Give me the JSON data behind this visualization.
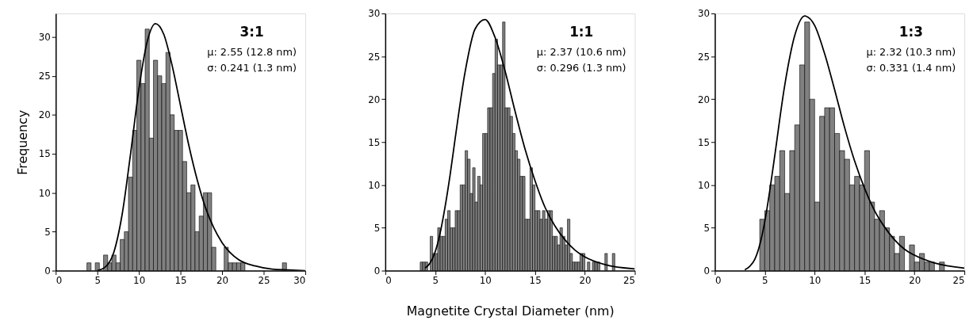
{
  "chart_data": [
    {
      "type": "histogram",
      "ylabel": "Frequency",
      "color": "#808080",
      "bins": [
        3.75,
        4.25,
        4.75,
        5.25,
        5.75,
        6.25,
        6.75,
        7.25,
        7.75,
        8.25,
        8.75,
        9.25,
        9.75,
        10.25,
        10.75,
        11.25,
        11.75,
        12.25,
        12.75,
        13.25,
        13.75,
        14.25,
        14.75,
        15.25,
        15.75,
        16.25,
        16.75,
        17.25,
        17.75,
        18.25,
        18.75,
        19.25,
        19.75,
        20.25,
        20.75,
        21.25,
        21.75,
        22.25,
        22.75,
        23.25,
        23.75,
        24.25,
        24.75,
        25.25,
        25.75,
        26.25,
        26.75,
        27.25,
        27.75
      ],
      "values": [
        1,
        0,
        1,
        0,
        2,
        1,
        2,
        1,
        4,
        5,
        12,
        18,
        27,
        24,
        31,
        17,
        27,
        25,
        24,
        28,
        20,
        18,
        18,
        14,
        10,
        11,
        5,
        7,
        10,
        10,
        3,
        0,
        0,
        3,
        1,
        1,
        1,
        1,
        0,
        0,
        0,
        0,
        0,
        0,
        0,
        0,
        0,
        1
      ],
      "series": [
        {
          "type": "line",
          "color": "#000000",
          "x": [
            5,
            6,
            7,
            8,
            9,
            10,
            11,
            12,
            13,
            14,
            15,
            16,
            17,
            18,
            19,
            20,
            22,
            24,
            26,
            28,
            30
          ],
          "values": [
            0.0,
            0.5,
            2.4,
            7.3,
            15.0,
            23.3,
            29.4,
            31.7,
            30.3,
            26.3,
            21.2,
            16.1,
            11.7,
            8.1,
            5.5,
            3.6,
            1.4,
            0.6,
            0.2,
            0.1,
            0.0
          ]
        }
      ],
      "xlim": [
        0,
        30
      ],
      "xticks": [
        0,
        5,
        10,
        15,
        20,
        25,
        30
      ],
      "ylim": [
        0,
        33
      ],
      "yticks": [
        0,
        5,
        10,
        15,
        20,
        25,
        30
      ],
      "annotations": [
        "3:1",
        "μ: 2.55 (12.8 nm)",
        "σ: 0.241 (1.3 nm)"
      ]
    },
    {
      "type": "histogram",
      "xlabel": "Magnetite Crystal Diameter (nm)",
      "color": "#808080",
      "bins": [
        3.5,
        3.75,
        4,
        4.25,
        4.5,
        4.75,
        5,
        5.25,
        5.5,
        5.75,
        6,
        6.25,
        6.5,
        6.75,
        7,
        7.25,
        7.5,
        7.75,
        8,
        8.25,
        8.5,
        8.75,
        9,
        9.25,
        9.5,
        9.75,
        10,
        10.25,
        10.5,
        10.75,
        11,
        11.25,
        11.5,
        11.75,
        12,
        12.25,
        12.5,
        12.75,
        13,
        13.25,
        13.5,
        13.75,
        14,
        14.25,
        14.5,
        14.75,
        15,
        15.25,
        15.5,
        15.75,
        16,
        16.25,
        16.5,
        16.75,
        17,
        17.25,
        17.5,
        17.75,
        18,
        18.25,
        18.5,
        18.75,
        19,
        19.25,
        19.5,
        19.75,
        20,
        20.25,
        20.5,
        20.75,
        21,
        21.25,
        21.5,
        21.75,
        22,
        22.25,
        22.5,
        22.75,
        23
      ],
      "values": [
        1,
        1,
        1,
        0,
        4,
        2,
        2,
        5,
        4,
        4,
        6,
        7,
        5,
        5,
        7,
        7,
        10,
        10,
        14,
        13,
        9,
        12,
        8,
        11,
        10,
        16,
        16,
        19,
        19,
        23,
        27,
        24,
        24,
        29,
        19,
        19,
        18,
        16,
        14,
        13,
        11,
        11,
        6,
        6,
        12,
        10,
        7,
        7,
        6,
        7,
        6,
        7,
        7,
        4,
        4,
        3,
        5,
        4,
        3,
        6,
        2,
        1,
        1,
        1,
        2,
        2,
        0,
        1,
        0,
        1,
        1,
        1,
        0,
        0,
        2,
        0,
        0,
        2
      ],
      "series": [
        {
          "type": "line",
          "color": "#000000",
          "x": [
            4,
            4.5,
            5,
            5.5,
            6,
            6.5,
            7,
            8,
            9,
            10,
            11,
            12,
            13,
            14,
            15,
            16,
            17,
            18,
            19,
            20,
            22,
            25
          ],
          "values": [
            0.3,
            0.9,
            2.2,
            4.4,
            7.5,
            11.2,
            15.4,
            23.2,
            28.2,
            29.3,
            27.2,
            23.3,
            18.6,
            14.2,
            10.5,
            7.4,
            5.2,
            3.6,
            2.4,
            1.6,
            0.7,
            0.2
          ]
        }
      ],
      "xlim": [
        0,
        25
      ],
      "xticks": [
        0,
        5,
        10,
        15,
        20,
        25
      ],
      "ylim": [
        0,
        30
      ],
      "yticks": [
        0,
        5,
        10,
        15,
        20,
        25,
        30
      ],
      "annotations": [
        "1:1",
        "μ: 2.37 (10.6 nm)",
        "σ: 0.296 (1.3 nm)"
      ]
    },
    {
      "type": "histogram",
      "color": "#808080",
      "bins": [
        4.5,
        5,
        5.5,
        6,
        6.5,
        7,
        7.5,
        8,
        8.5,
        9,
        9.5,
        10,
        10.5,
        11,
        11.5,
        12,
        12.5,
        13,
        13.5,
        14,
        14.5,
        15,
        15.5,
        16,
        16.5,
        17,
        17.5,
        18,
        18.5,
        19,
        19.5,
        20,
        20.5,
        21,
        21.5,
        22,
        22.5,
        23
      ],
      "values": [
        6,
        7,
        10,
        11,
        14,
        9,
        14,
        17,
        24,
        29,
        20,
        8,
        18,
        19,
        19,
        16,
        14,
        13,
        10,
        11,
        10,
        14,
        8,
        6,
        7,
        5,
        4,
        2,
        4,
        0,
        3,
        1,
        2,
        1,
        1,
        0,
        1
      ],
      "series": [
        {
          "type": "line",
          "color": "#000000",
          "x": [
            3,
            3.5,
            4,
            4.5,
            5,
            5.5,
            6,
            7,
            8,
            9,
            10,
            11,
            12,
            13,
            14,
            15,
            16,
            17,
            18,
            19,
            20,
            22,
            25
          ],
          "values": [
            0.1,
            0.5,
            1.3,
            3.0,
            5.7,
            9.3,
            13.4,
            21.6,
            27.4,
            29.7,
            28.6,
            25.3,
            21.1,
            16.7,
            12.8,
            9.6,
            7.0,
            5.1,
            3.6,
            2.5,
            1.8,
            0.9,
            0.3
          ]
        }
      ],
      "xlim": [
        0,
        25
      ],
      "xticks": [
        0,
        5,
        10,
        15,
        20,
        25
      ],
      "ylim": [
        0,
        30
      ],
      "yticks": [
        0,
        5,
        10,
        15,
        20,
        25,
        30
      ],
      "annotations": [
        "1:3",
        "μ: 2.32 (10.3 nm)",
        "σ: 0.331 (1.4 nm)"
      ]
    }
  ]
}
